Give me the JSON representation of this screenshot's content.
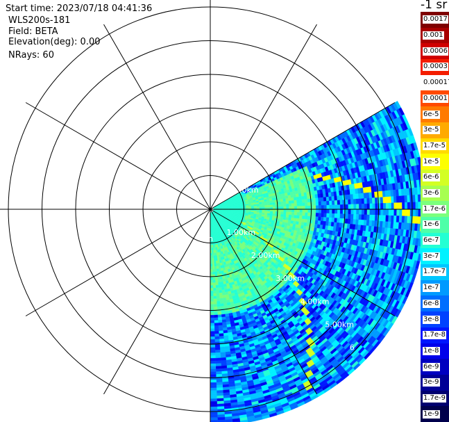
{
  "info": {
    "start_time": "Start time: 2023/07/18 04:41:36",
    "station": "WLS200s-181",
    "field": "Field: BETA",
    "elevation": "Elevation(deg): 0.00",
    "nrays": "NRays: 60"
  },
  "colorbar": {
    "title": "-1 sr",
    "labels": [
      "0.0017",
      "0.001",
      "0.0006",
      "0.0003",
      "0.00017",
      "0.0001",
      "6e-5",
      "3e-5",
      "1.7e-5",
      "1e-5",
      "6e-6",
      "3e-6",
      "1.7e-6",
      "1e-6",
      "6e-7",
      "3e-7",
      "1.7e-7",
      "1e-7",
      "6e-8",
      "3e-8",
      "1.7e-8",
      "1e-8",
      "6e-9",
      "3e-9",
      "1.7e-9",
      "1e-9"
    ],
    "colors": [
      "#7f0000",
      "#a80000",
      "#d00000",
      "#f41d00",
      "#ffffff",
      "#ff4a00",
      "#ff7a00",
      "#ffaa00",
      "#ffdb00",
      "#fdff00",
      "#d3ff24",
      "#a7ff50",
      "#7bff7c",
      "#4fffa8",
      "#24ffd3",
      "#00f2ff",
      "#00c6ff",
      "#009aff",
      "#006eff",
      "#0042ff",
      "#0016ff",
      "#0000ea",
      "#0000c0",
      "#000096",
      "#000070",
      "#00004c"
    ]
  },
  "chart_data": {
    "type": "ppi",
    "title": "",
    "field": "BETA",
    "units": "-1 sr",
    "elevation_deg": 0.0,
    "n_rays": 60,
    "range_rings_km": [
      1.0,
      2.0,
      3.0,
      4.0,
      5.0,
      6.0
    ],
    "ring_labels": [
      "1.00km",
      "2.00km",
      "3.00km",
      "4.00km",
      "5.00km",
      "6"
    ],
    "ring_label_partial": [
      ".0km",
      "n"
    ],
    "azimuth_spokes_deg": [
      0,
      30,
      60,
      90,
      120,
      150,
      180,
      210,
      240,
      270,
      300,
      330
    ],
    "sector_azimuth_deg": [
      60,
      180
    ],
    "max_range_km": 6.4,
    "background_beta": "1e-7",
    "inner_beta": "1e-6",
    "feature_beta": "1e-5",
    "colorbar_scale": "log",
    "beta_range": [
      "1e-9",
      "0.0017"
    ]
  }
}
